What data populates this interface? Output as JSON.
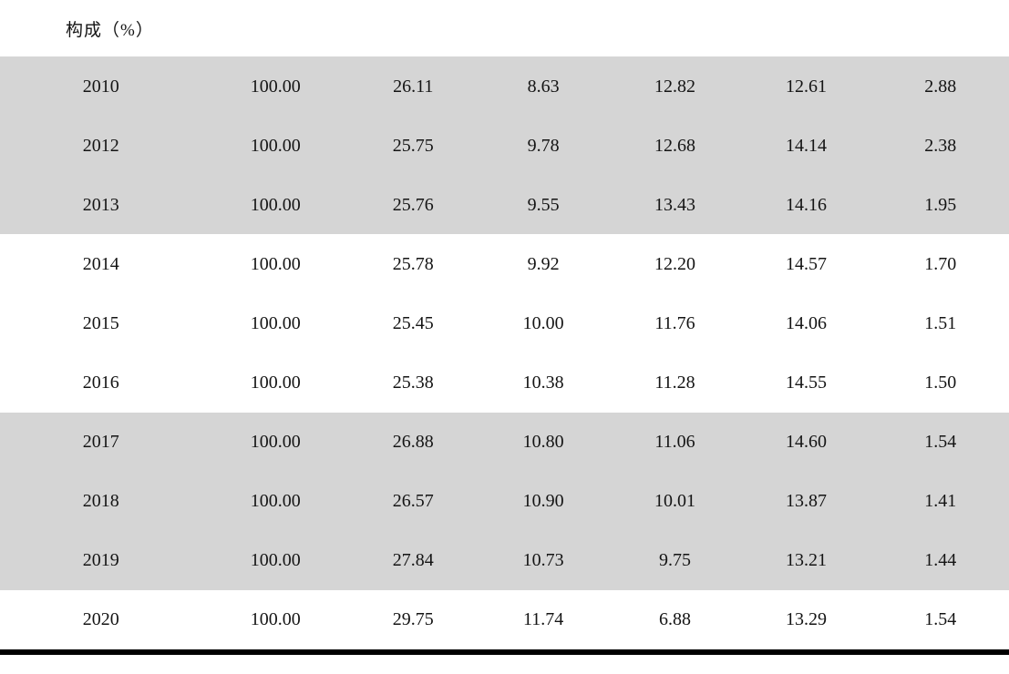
{
  "header": {
    "title": "构成（%）"
  },
  "table": {
    "rows": [
      {
        "year": "2010",
        "values": [
          "100.00",
          "26.11",
          "8.63",
          "12.82",
          "12.61",
          "2.88"
        ]
      },
      {
        "year": "2012",
        "values": [
          "100.00",
          "25.75",
          "9.78",
          "12.68",
          "14.14",
          "2.38"
        ]
      },
      {
        "year": "2013",
        "values": [
          "100.00",
          "25.76",
          "9.55",
          "13.43",
          "14.16",
          "1.95"
        ]
      },
      {
        "year": "2014",
        "values": [
          "100.00",
          "25.78",
          "9.92",
          "12.20",
          "14.57",
          "1.70"
        ]
      },
      {
        "year": "2015",
        "values": [
          "100.00",
          "25.45",
          "10.00",
          "11.76",
          "14.06",
          "1.51"
        ]
      },
      {
        "year": "2016",
        "values": [
          "100.00",
          "25.38",
          "10.38",
          "11.28",
          "14.55",
          "1.50"
        ]
      },
      {
        "year": "2017",
        "values": [
          "100.00",
          "26.88",
          "10.80",
          "11.06",
          "14.60",
          "1.54"
        ]
      },
      {
        "year": "2018",
        "values": [
          "100.00",
          "26.57",
          "10.90",
          "10.01",
          "13.87",
          "1.41"
        ]
      },
      {
        "year": "2019",
        "values": [
          "100.00",
          "27.84",
          "10.73",
          "9.75",
          "13.21",
          "1.44"
        ]
      },
      {
        "year": "2020",
        "values": [
          "100.00",
          "29.75",
          "11.74",
          "6.88",
          "13.29",
          "1.54"
        ]
      }
    ],
    "shaded_year_groups": [
      [
        "2010",
        "2012",
        "2013"
      ],
      [
        "2017",
        "2018",
        "2019"
      ]
    ]
  },
  "colors": {
    "row_band": "#d5d5d5",
    "text": "#141414",
    "bottom_rule": "#000000"
  }
}
